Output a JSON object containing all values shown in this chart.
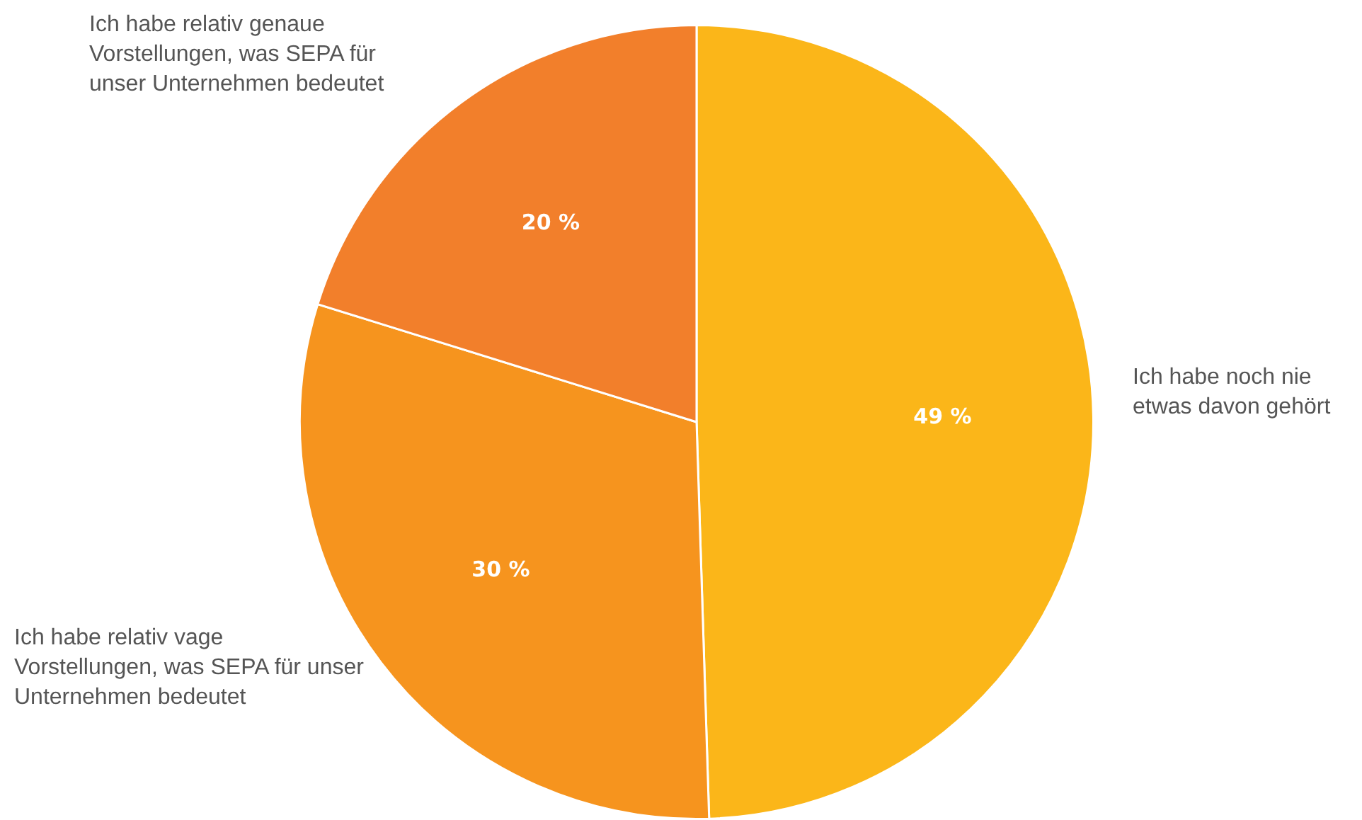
{
  "chart_data": {
    "type": "pie",
    "categories": [
      "Ich habe noch nie etwas davon gehört",
      "Ich habe relativ vage Vorstellungen, was SEPA für unser Unternehmen bedeutet",
      "Ich habe relativ genaue Vorstellungen, was SEPA für unser Unternehmen bedeutet"
    ],
    "values": [
      49,
      30,
      20
    ],
    "colors": [
      "#fbb619",
      "#f6941e",
      "#f27f2b"
    ],
    "value_labels": [
      "49 %",
      "30 %",
      "20 %"
    ],
    "legend": false
  }
}
